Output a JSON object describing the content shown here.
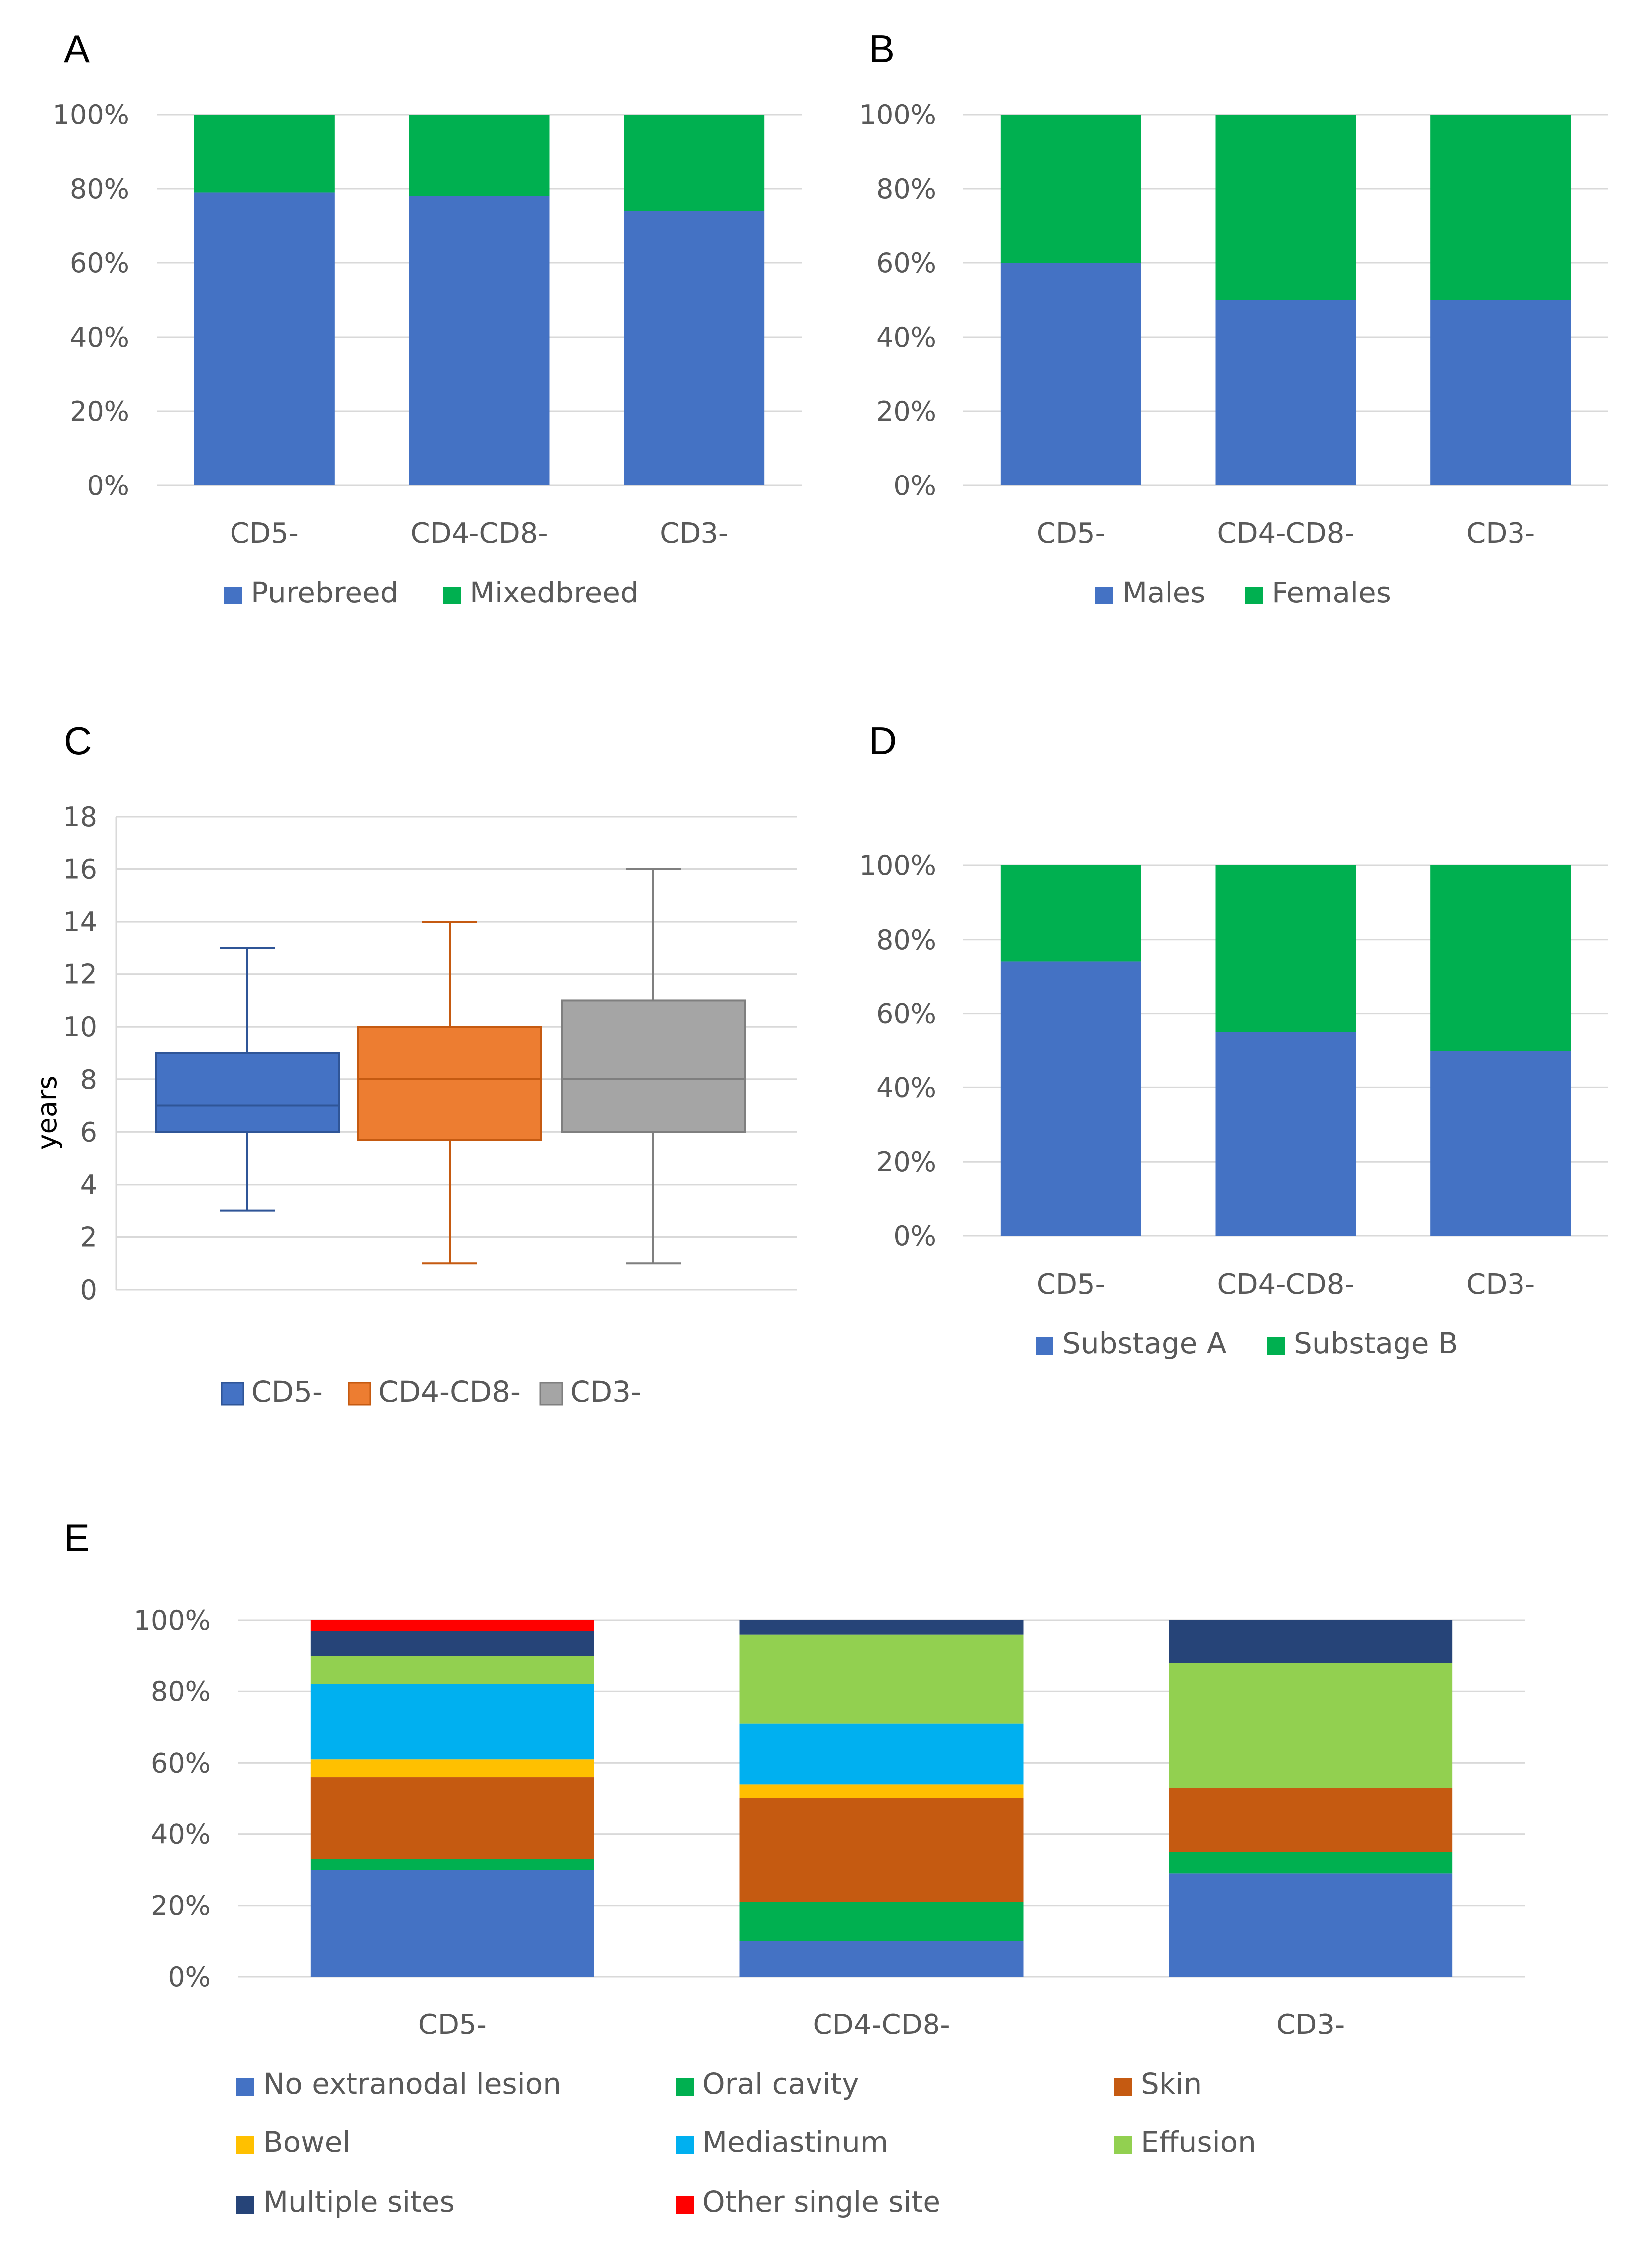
{
  "figure": {
    "background": "#ffffff"
  },
  "chart_data": [
    {
      "id": "A",
      "panel_label": "A",
      "type": "bar",
      "stacked": true,
      "percent": true,
      "categories": [
        "CD5-",
        "CD4-CD8-",
        "CD3-"
      ],
      "series": [
        {
          "name": "Purebreed",
          "color": "#4472c4",
          "values": [
            79,
            78,
            74
          ]
        },
        {
          "name": "Mixedbreed",
          "color": "#00b050",
          "values": [
            21,
            22,
            26
          ]
        }
      ],
      "ylim": [
        0,
        100
      ],
      "yticks": [
        "0%",
        "20%",
        "40%",
        "60%",
        "80%",
        "100%"
      ],
      "legend_position": "bottom",
      "grid": true
    },
    {
      "id": "B",
      "panel_label": "B",
      "type": "bar",
      "stacked": true,
      "percent": true,
      "categories": [
        "CD5-",
        "CD4-CD8-",
        "CD3-"
      ],
      "series": [
        {
          "name": "Males",
          "color": "#4472c4",
          "values": [
            60,
            50,
            50
          ]
        },
        {
          "name": "Females",
          "color": "#00b050",
          "values": [
            40,
            50,
            50
          ]
        }
      ],
      "ylim": [
        0,
        100
      ],
      "yticks": [
        "0%",
        "20%",
        "40%",
        "60%",
        "80%",
        "100%"
      ],
      "legend_position": "bottom",
      "grid": true
    },
    {
      "id": "C",
      "panel_label": "C",
      "type": "box",
      "ylabel": "years",
      "ylim": [
        0,
        18
      ],
      "yticks": [
        "0",
        "2",
        "4",
        "6",
        "8",
        "10",
        "12",
        "14",
        "16",
        "18"
      ],
      "boxes": [
        {
          "name": "CD5-",
          "fill": "#4472c4",
          "line": "#2f5597",
          "min": 3,
          "q1": 6,
          "median": 7,
          "q3": 9,
          "max": 13
        },
        {
          "name": "CD4-CD8-",
          "fill": "#ed7d31",
          "line": "#c55a11",
          "min": 1,
          "q1": 5.7,
          "median": 8,
          "q3": 10,
          "max": 14
        },
        {
          "name": "CD3-",
          "fill": "#a5a5a5",
          "line": "#7f7f7f",
          "min": 1,
          "q1": 6,
          "median": 8,
          "q3": 11,
          "max": 16
        }
      ],
      "legend_position": "bottom",
      "grid": true
    },
    {
      "id": "D",
      "panel_label": "D",
      "type": "bar",
      "stacked": true,
      "percent": true,
      "categories": [
        "CD5-",
        "CD4-CD8-",
        "CD3-"
      ],
      "series": [
        {
          "name": "Substage A",
          "color": "#4472c4",
          "values": [
            74,
            55,
            50
          ]
        },
        {
          "name": "Substage B",
          "color": "#00b050",
          "values": [
            26,
            45,
            50
          ]
        }
      ],
      "ylim": [
        0,
        100
      ],
      "yticks": [
        "0%",
        "20%",
        "40%",
        "60%",
        "80%",
        "100%"
      ],
      "legend_position": "bottom",
      "grid": true
    },
    {
      "id": "E",
      "panel_label": "E",
      "type": "bar",
      "stacked": true,
      "percent": true,
      "categories": [
        "CD5-",
        "CD4-CD8-",
        "CD3-"
      ],
      "series": [
        {
          "name": "No extranodal lesion",
          "color": "#4472c4",
          "values": [
            30,
            10,
            29
          ]
        },
        {
          "name": "Oral cavity",
          "color": "#00b050",
          "values": [
            3,
            11,
            6
          ]
        },
        {
          "name": "Skin",
          "color": "#c55a11",
          "values": [
            23,
            29,
            18
          ]
        },
        {
          "name": "Bowel",
          "color": "#ffc000",
          "values": [
            5,
            4,
            0
          ]
        },
        {
          "name": "Mediastinum",
          "color": "#00b0f0",
          "values": [
            21,
            17,
            0
          ]
        },
        {
          "name": "Effusion",
          "color": "#92d050",
          "values": [
            8,
            25,
            35
          ]
        },
        {
          "name": "Multiple sites",
          "color": "#264478",
          "values": [
            7,
            4,
            12
          ]
        },
        {
          "name": "Other single site",
          "color": "#ff0000",
          "values": [
            3,
            0,
            0
          ]
        }
      ],
      "ylim": [
        0,
        100
      ],
      "yticks": [
        "0%",
        "20%",
        "40%",
        "60%",
        "80%",
        "100%"
      ],
      "legend_position": "bottom",
      "grid": true
    }
  ]
}
